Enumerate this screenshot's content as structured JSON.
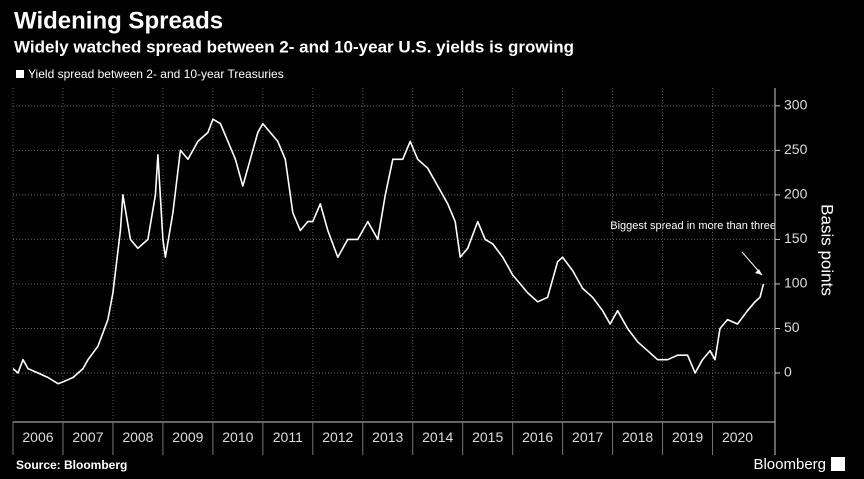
{
  "chart_data": {
    "type": "line",
    "title": "Widening Spreads",
    "subtitle": "Widely watched spread between 2- and 10-year U.S. yields is growing",
    "y_label": "Basis points",
    "source": "Source: Bloomberg",
    "brand": "Bloomberg",
    "annotation": "Biggest spread in more than three",
    "grid": true,
    "xlim": [
      2006,
      2021.25
    ],
    "xticks": [
      2006,
      2007,
      2008,
      2009,
      2010,
      2011,
      2012,
      2013,
      2014,
      2015,
      2016,
      2017,
      2018,
      2019,
      2020
    ],
    "ylim": [
      -55,
      320
    ],
    "yticks": [
      0,
      50,
      100,
      150,
      200,
      250,
      300
    ],
    "series": [
      {
        "name": "Yield spread between 2- and 10-year Treasuries",
        "color": "#ffffff",
        "x": [
          2006.0,
          2006.1,
          2006.2,
          2006.3,
          2006.5,
          2006.7,
          2006.9,
          2007.0,
          2007.2,
          2007.4,
          2007.5,
          2007.7,
          2007.9,
          2008.0,
          2008.15,
          2008.2,
          2008.35,
          2008.5,
          2008.7,
          2008.85,
          2008.9,
          2009.0,
          2009.05,
          2009.2,
          2009.35,
          2009.5,
          2009.7,
          2009.9,
          2010.0,
          2010.15,
          2010.3,
          2010.45,
          2010.6,
          2010.75,
          2010.9,
          2011.0,
          2011.15,
          2011.3,
          2011.45,
          2011.6,
          2011.75,
          2011.9,
          2012.0,
          2012.15,
          2012.3,
          2012.5,
          2012.7,
          2012.9,
          2013.1,
          2013.3,
          2013.45,
          2013.6,
          2013.8,
          2013.95,
          2014.1,
          2014.3,
          2014.5,
          2014.7,
          2014.85,
          2014.95,
          2015.1,
          2015.3,
          2015.45,
          2015.6,
          2015.8,
          2016.0,
          2016.15,
          2016.3,
          2016.5,
          2016.7,
          2016.9,
          2017.0,
          2017.2,
          2017.4,
          2017.6,
          2017.8,
          2017.95,
          2018.1,
          2018.3,
          2018.5,
          2018.7,
          2018.9,
          2019.1,
          2019.3,
          2019.5,
          2019.65,
          2019.8,
          2019.95,
          2020.05,
          2020.15,
          2020.3,
          2020.5,
          2020.7,
          2020.85,
          2020.95,
          2021.02
        ],
        "values": [
          5,
          0,
          15,
          5,
          0,
          -5,
          -12,
          -10,
          -5,
          5,
          15,
          30,
          60,
          90,
          160,
          200,
          150,
          140,
          150,
          200,
          245,
          150,
          130,
          180,
          250,
          240,
          260,
          270,
          285,
          280,
          260,
          240,
          210,
          240,
          270,
          280,
          270,
          260,
          240,
          180,
          160,
          170,
          170,
          190,
          160,
          130,
          150,
          150,
          170,
          150,
          200,
          240,
          240,
          260,
          240,
          230,
          210,
          190,
          170,
          130,
          140,
          170,
          150,
          145,
          130,
          110,
          100,
          90,
          80,
          85,
          125,
          130,
          115,
          95,
          85,
          70,
          55,
          70,
          50,
          35,
          25,
          15,
          15,
          20,
          20,
          0,
          15,
          25,
          15,
          50,
          60,
          55,
          70,
          80,
          85,
          100
        ]
      }
    ]
  }
}
